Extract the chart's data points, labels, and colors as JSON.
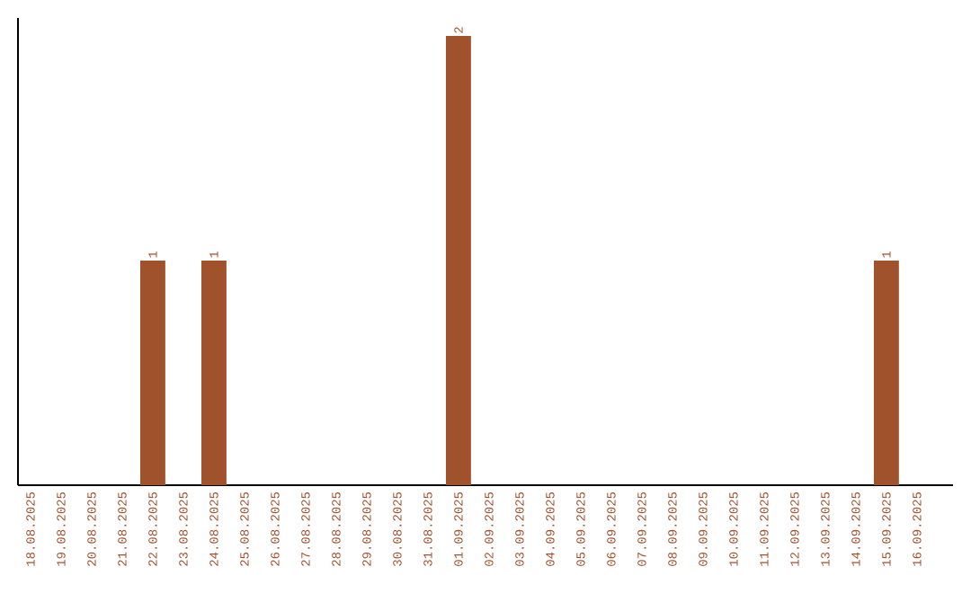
{
  "chart_data": {
    "type": "bar",
    "categories": [
      "18.08.2025",
      "19.08.2025",
      "20.08.2025",
      "21.08.2025",
      "22.08.2025",
      "23.08.2025",
      "24.08.2025",
      "25.08.2025",
      "26.08.2025",
      "27.08.2025",
      "28.08.2025",
      "29.08.2025",
      "30.08.2025",
      "31.08.2025",
      "01.09.2025",
      "02.09.2025",
      "03.09.2025",
      "04.09.2025",
      "05.09.2025",
      "06.09.2025",
      "07.09.2025",
      "08.09.2025",
      "09.09.2025",
      "10.09.2025",
      "11.09.2025",
      "12.09.2025",
      "13.09.2025",
      "14.09.2025",
      "15.09.2025",
      "16.09.2025"
    ],
    "values": [
      0,
      0,
      0,
      0,
      1,
      0,
      1,
      0,
      0,
      0,
      0,
      0,
      0,
      0,
      2,
      0,
      0,
      0,
      0,
      0,
      0,
      0,
      0,
      0,
      0,
      0,
      0,
      0,
      1,
      0
    ],
    "value_labels": [
      null,
      null,
      null,
      null,
      "1",
      null,
      "1",
      null,
      null,
      null,
      null,
      null,
      null,
      null,
      "2",
      null,
      null,
      null,
      null,
      null,
      null,
      null,
      null,
      null,
      null,
      null,
      null,
      null,
      "1",
      null
    ],
    "color": "#a0522d",
    "ylim": [
      0,
      2.08
    ],
    "tick_labels": "x"
  }
}
